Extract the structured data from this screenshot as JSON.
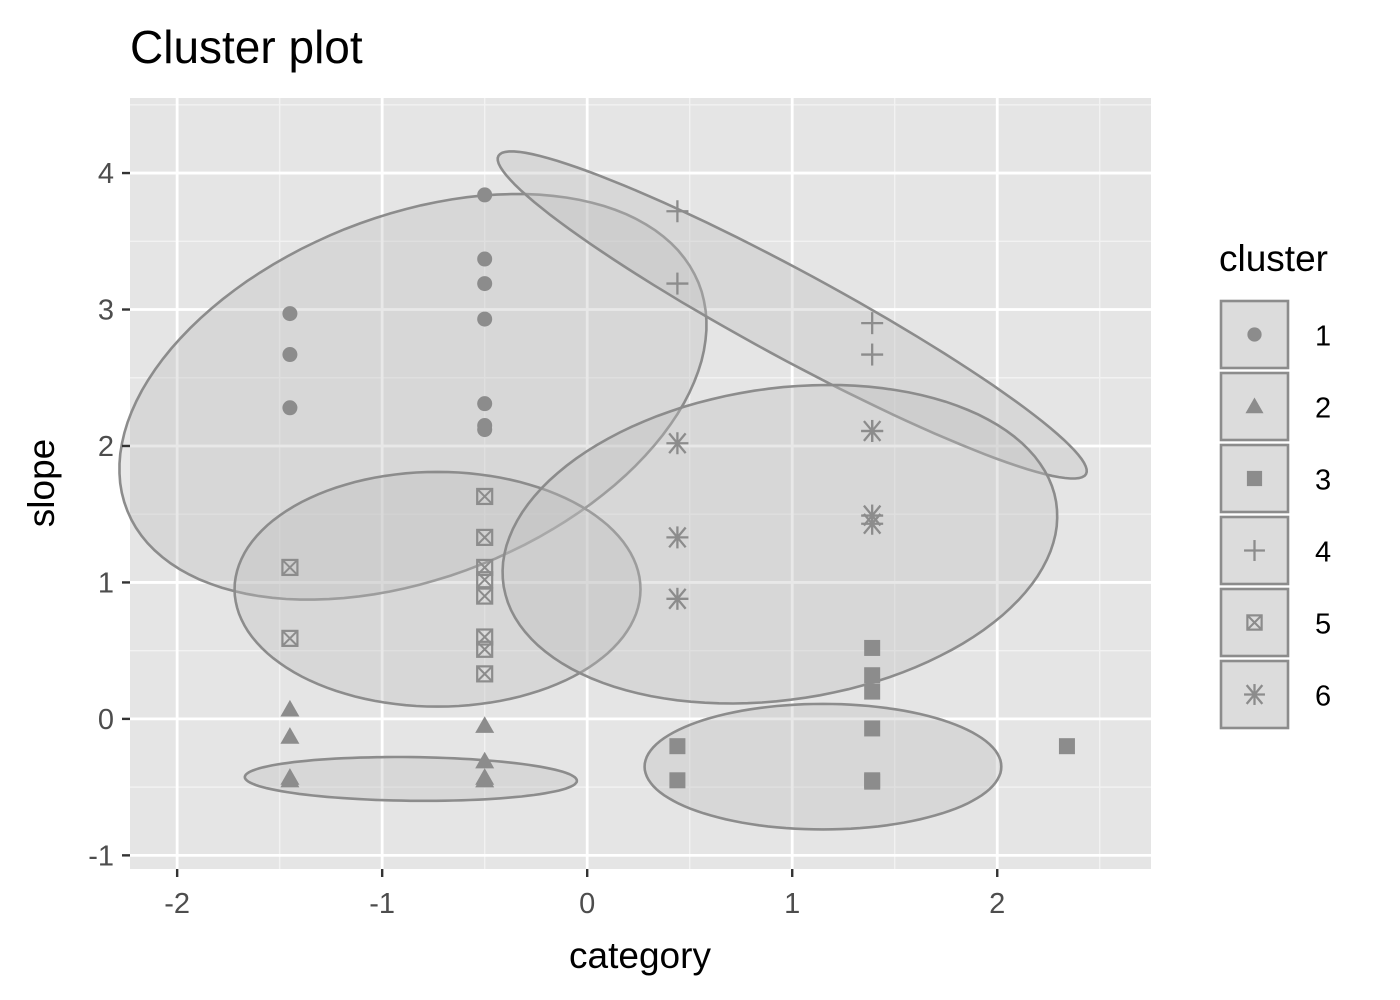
{
  "chart_data": {
    "type": "scatter",
    "title": "Cluster plot",
    "xlabel": "category",
    "ylabel": "slope",
    "xlim": [
      -2.23,
      2.75
    ],
    "ylim": [
      -1.1,
      4.55
    ],
    "x_ticks": [
      -2,
      -1,
      0,
      1,
      2
    ],
    "x_tick_labels": [
      "-2",
      "-1",
      "0",
      "1",
      "2"
    ],
    "y_ticks": [
      -1,
      0,
      1,
      2,
      3,
      4
    ],
    "y_tick_labels": [
      "-1",
      "0",
      "1",
      "2",
      "3",
      "4"
    ],
    "grid": true,
    "legend": {
      "title": "cluster",
      "position": "right"
    },
    "marker_color": "#8c8c8c",
    "panel_color": "#e5e5e5",
    "series": [
      {
        "name": "1",
        "shape": "circle",
        "points": [
          [
            -1.45,
            2.97
          ],
          [
            -1.45,
            2.67
          ],
          [
            -1.45,
            2.28
          ],
          [
            -0.5,
            3.84
          ],
          [
            -0.5,
            3.37
          ],
          [
            -0.5,
            3.19
          ],
          [
            -0.5,
            2.93
          ],
          [
            -0.5,
            2.31
          ],
          [
            -0.5,
            2.15
          ],
          [
            -0.5,
            2.12
          ]
        ],
        "ellipse": {
          "cx": -0.85,
          "cy": 2.36,
          "rx": 1.17,
          "ry": 1.7,
          "angle_deg": -42
        }
      },
      {
        "name": "2",
        "shape": "triangle",
        "points": [
          [
            -1.45,
            0.07
          ],
          [
            -1.45,
            -0.13
          ],
          [
            -1.45,
            -0.43
          ],
          [
            -1.45,
            -0.45
          ],
          [
            -0.5,
            -0.05
          ],
          [
            -0.5,
            -0.31
          ],
          [
            -0.5,
            -0.43
          ],
          [
            -0.5,
            -0.45
          ]
        ],
        "ellipse": {
          "cx": -0.86,
          "cy": -0.44,
          "rx": 0.81,
          "ry": 0.16,
          "angle_deg": -1
        }
      },
      {
        "name": "3",
        "shape": "square",
        "points": [
          [
            0.44,
            -0.2
          ],
          [
            0.44,
            -0.45
          ],
          [
            1.39,
            0.52
          ],
          [
            1.39,
            0.32
          ],
          [
            1.39,
            0.2
          ],
          [
            1.39,
            -0.07
          ],
          [
            1.39,
            -0.45
          ],
          [
            1.39,
            -0.46
          ],
          [
            2.34,
            -0.2
          ]
        ],
        "ellipse": {
          "cx": 1.15,
          "cy": -0.35,
          "rx": 0.87,
          "ry": 0.46,
          "angle_deg": 0
        }
      },
      {
        "name": "4",
        "shape": "plus",
        "points": [
          [
            0.44,
            3.72
          ],
          [
            0.44,
            3.19
          ],
          [
            1.39,
            2.9
          ],
          [
            1.39,
            2.67
          ],
          [
            1.39,
            2.11
          ]
        ],
        "ellipse": {
          "cx": 1.0,
          "cy": 2.96,
          "rx": 1.85,
          "ry": 0.28,
          "angle_deg": -39.6
        }
      },
      {
        "name": "5",
        "shape": "square-cross",
        "points": [
          [
            -1.45,
            1.11
          ],
          [
            -1.45,
            0.59
          ],
          [
            -0.5,
            1.63
          ],
          [
            -0.5,
            1.33
          ],
          [
            -0.5,
            1.11
          ],
          [
            -0.5,
            1.02
          ],
          [
            -0.5,
            0.9
          ],
          [
            -0.5,
            0.6
          ],
          [
            -0.5,
            0.51
          ],
          [
            -0.5,
            0.33
          ]
        ],
        "ellipse": {
          "cx": -0.73,
          "cy": 0.95,
          "rx": 0.99,
          "ry": 0.86,
          "angle_deg": 0
        }
      },
      {
        "name": "6",
        "shape": "asterisk",
        "points": [
          [
            0.44,
            2.02
          ],
          [
            0.44,
            1.33
          ],
          [
            0.44,
            0.88
          ],
          [
            1.39,
            2.11
          ],
          [
            1.39,
            1.49
          ],
          [
            1.39,
            1.43
          ]
        ],
        "ellipse": {
          "cx": 0.94,
          "cy": 1.28,
          "rx": 1.4,
          "ry": 1.11,
          "angle_deg": 25
        }
      }
    ]
  }
}
